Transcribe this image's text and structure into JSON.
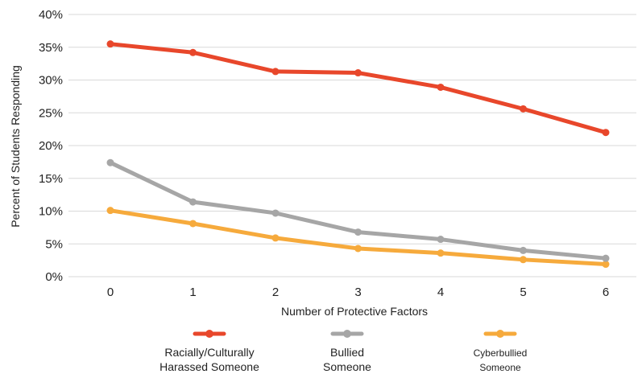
{
  "chart_data": {
    "type": "line",
    "title": "",
    "xlabel": "Number of Protective Factors",
    "ylabel": "Percent of Students Responding",
    "x": [
      "0",
      "1",
      "2",
      "3",
      "4",
      "5",
      "6"
    ],
    "ylim": [
      0,
      40
    ],
    "yticks": [
      "0%",
      "5%",
      "10%",
      "15%",
      "20%",
      "25%",
      "30%",
      "35%",
      "40%"
    ],
    "grid": "horizontal",
    "legend_position": "bottom",
    "series": [
      {
        "name_lines": [
          "Racially/Culturally",
          "Harassed Someone"
        ],
        "color": "#e8472b",
        "values": [
          35.5,
          34.2,
          31.3,
          31.1,
          28.9,
          25.6,
          22.0
        ]
      },
      {
        "name_lines": [
          "Bullied",
          "Someone"
        ],
        "color": "#a6a6a6",
        "values": [
          17.4,
          11.4,
          9.7,
          6.8,
          5.7,
          4.0,
          2.8
        ]
      },
      {
        "name_lines": [
          "Cyberbullied",
          "Someone"
        ],
        "color": "#f6aa3c",
        "values": [
          10.1,
          8.1,
          5.9,
          4.3,
          3.6,
          2.6,
          1.9
        ]
      }
    ]
  }
}
